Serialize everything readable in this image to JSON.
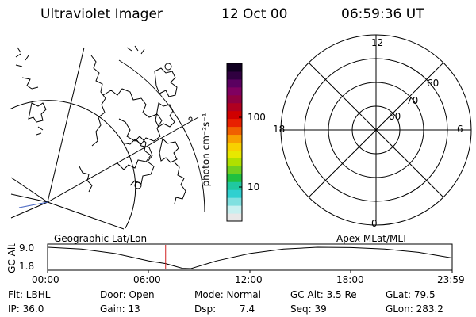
{
  "header": {
    "title": "Ultraviolet Imager",
    "date": "12 Oct 00",
    "time": "06:59:36 UT"
  },
  "colorbar": {
    "unit_label": "photon cm⁻²s⁻¹",
    "tick_labels": [
      "100",
      "10"
    ],
    "colors": [
      "#e8e8e8",
      "#c8f0f0",
      "#80e0e0",
      "#30d0d0",
      "#20c8a0",
      "#20c040",
      "#70d020",
      "#b0e000",
      "#e8e800",
      "#f8d000",
      "#f8a000",
      "#f06000",
      "#e82000",
      "#d00000",
      "#b00020",
      "#900040",
      "#800060",
      "#5a0060",
      "#300040",
      "#100020"
    ]
  },
  "map_left": {
    "caption": "Geographic Lat/Lon"
  },
  "polar_plot": {
    "caption": "Apex MLat/MLT",
    "mlt_labels": {
      "top": "12",
      "left": "18",
      "right": "6",
      "bottom": "0"
    },
    "lat_labels": [
      "60",
      "70",
      "80"
    ]
  },
  "timeline": {
    "axis_label": "GC Alt",
    "y_ticks": [
      "9.0",
      "1.8"
    ],
    "x_ticks": [
      "00:00",
      "06:00",
      "12:00",
      "18:00",
      "23:59"
    ],
    "current_time_hours": 7.0,
    "curve_hours": [
      0,
      2,
      4,
      6,
      7,
      8,
      8.5,
      10,
      12,
      14,
      16,
      18,
      20,
      22,
      23.99
    ],
    "curve_alt_re": [
      9.0,
      8.4,
      6.9,
      4.4,
      3.5,
      1.9,
      1.8,
      4.4,
      6.9,
      8.4,
      9.0,
      8.9,
      8.4,
      7.3,
      5.4
    ],
    "alt_range": [
      1.8,
      9.0
    ]
  },
  "footer": {
    "filter": "Flt: LBHL",
    "ip": "IP: 36.0",
    "door": "Door: Open",
    "gain": "Gain: 13",
    "mode": "Mode: Normal",
    "dsp_label": "Dsp:",
    "dsp_value": "7.4",
    "gc_alt": "GC Alt: 3.5 Re",
    "seq": "Seq: 39",
    "glat": "GLat:  79.5",
    "glon": "GLon: 283.2"
  }
}
